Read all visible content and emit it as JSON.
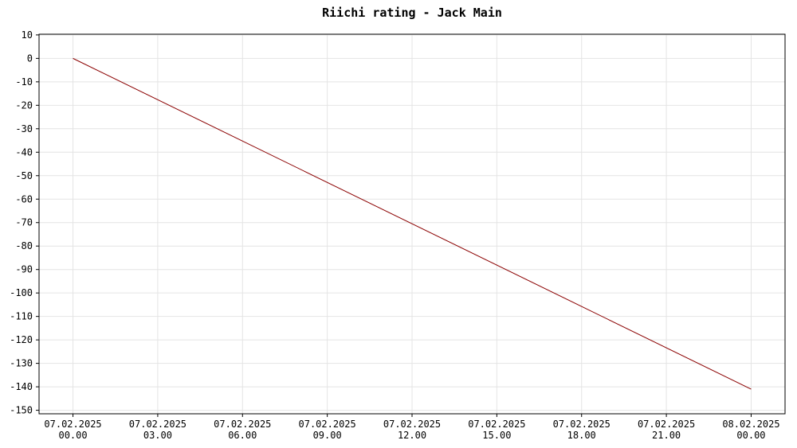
{
  "chart_data": {
    "type": "line",
    "title": "Riichi rating - Jack Main",
    "x": [
      "07.02.2025 00.00",
      "08.02.2025 00.00"
    ],
    "series": [
      {
        "name": "Riichi rating",
        "color": "#8b0000",
        "values": [
          0,
          -141
        ]
      }
    ],
    "xticks": [
      "07.02.2025 00.00",
      "07.02.2025 03.00",
      "07.02.2025 06.00",
      "07.02.2025 09.00",
      "07.02.2025 12.00",
      "07.02.2025 15.00",
      "07.02.2025 18.00",
      "07.02.2025 21.00",
      "08.02.2025 00.00"
    ],
    "ylim": [
      -151.5,
      10.3
    ],
    "yticks": [
      10,
      0,
      -10,
      -20,
      -30,
      -40,
      -50,
      -60,
      -70,
      -80,
      -90,
      -100,
      -110,
      -120,
      -130,
      -140,
      -150
    ],
    "grid": true
  }
}
